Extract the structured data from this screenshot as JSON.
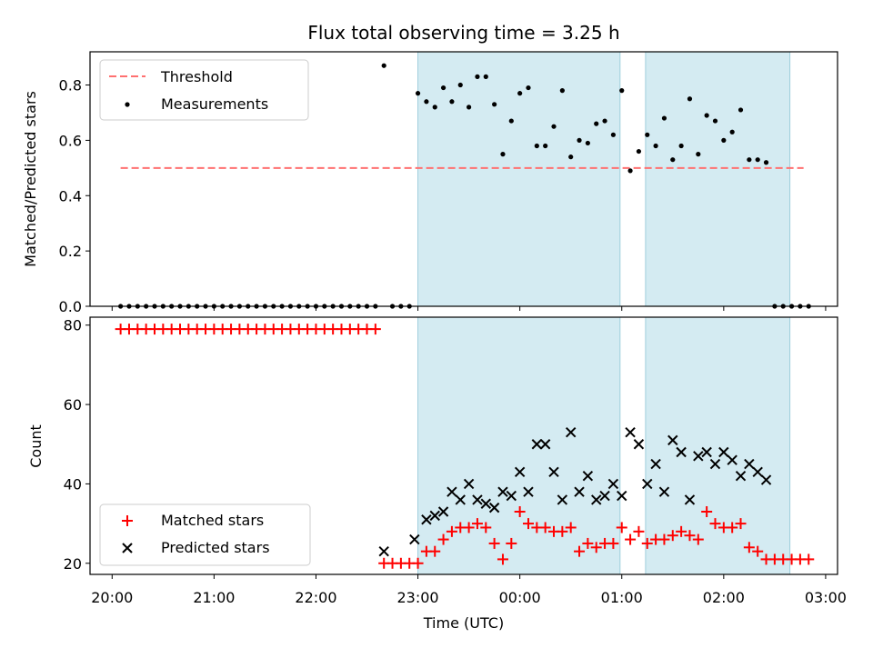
{
  "figure": {
    "title": "Flux total observing time = 3.25 h",
    "xlabel": "Time (UTC)",
    "xticks": [
      "20:00",
      "21:00",
      "22:00",
      "23:00",
      "00:00",
      "01:00",
      "02:00",
      "03:00"
    ]
  },
  "chart_data": [
    {
      "type": "scatter",
      "ylabel": "Matched/Predicted stars",
      "xlim": [
        "19:47",
        "03:07"
      ],
      "ylim": [
        0,
        0.92
      ],
      "yticks": [
        "0.0",
        "0.2",
        "0.4",
        "0.6",
        "0.8"
      ],
      "grid": false,
      "legend_position": "upper-left",
      "shaded_intervals": [
        [
          "23:00",
          "00:59"
        ],
        [
          "01:14",
          "02:39"
        ]
      ],
      "threshold": {
        "name": "Threshold",
        "y": 0.5,
        "x_range": [
          "20:05",
          "02:47"
        ],
        "color": "#ff7070"
      },
      "series": [
        {
          "name": "Measurements",
          "marker": "dot",
          "color": "#000000",
          "points": [
            [
              "20:05",
              0
            ],
            [
              "20:10",
              0
            ],
            [
              "20:15",
              0
            ],
            [
              "20:20",
              0
            ],
            [
              "20:25",
              0
            ],
            [
              "20:30",
              0
            ],
            [
              "20:35",
              0
            ],
            [
              "20:40",
              0
            ],
            [
              "20:45",
              0
            ],
            [
              "20:50",
              0
            ],
            [
              "20:55",
              0
            ],
            [
              "21:00",
              0
            ],
            [
              "21:05",
              0
            ],
            [
              "21:10",
              0
            ],
            [
              "21:15",
              0
            ],
            [
              "21:20",
              0
            ],
            [
              "21:25",
              0
            ],
            [
              "21:30",
              0
            ],
            [
              "21:35",
              0
            ],
            [
              "21:40",
              0
            ],
            [
              "21:45",
              0
            ],
            [
              "21:50",
              0
            ],
            [
              "21:55",
              0
            ],
            [
              "22:00",
              0
            ],
            [
              "22:05",
              0
            ],
            [
              "22:10",
              0
            ],
            [
              "22:15",
              0
            ],
            [
              "22:20",
              0
            ],
            [
              "22:25",
              0
            ],
            [
              "22:30",
              0
            ],
            [
              "22:35",
              0
            ],
            [
              "22:40",
              0.87
            ],
            [
              "22:45",
              0
            ],
            [
              "22:50",
              0
            ],
            [
              "22:55",
              0
            ],
            [
              "23:00",
              0.77
            ],
            [
              "23:05",
              0.74
            ],
            [
              "23:10",
              0.72
            ],
            [
              "23:15",
              0.79
            ],
            [
              "23:20",
              0.74
            ],
            [
              "23:25",
              0.8
            ],
            [
              "23:30",
              0.72
            ],
            [
              "23:35",
              0.83
            ],
            [
              "23:40",
              0.83
            ],
            [
              "23:45",
              0.73
            ],
            [
              "23:50",
              0.55
            ],
            [
              "23:55",
              0.67
            ],
            [
              "00:00",
              0.77
            ],
            [
              "00:05",
              0.79
            ],
            [
              "00:10",
              0.58
            ],
            [
              "00:15",
              0.58
            ],
            [
              "00:20",
              0.65
            ],
            [
              "00:25",
              0.78
            ],
            [
              "00:30",
              0.54
            ],
            [
              "00:35",
              0.6
            ],
            [
              "00:40",
              0.59
            ],
            [
              "00:45",
              0.66
            ],
            [
              "00:50",
              0.67
            ],
            [
              "00:55",
              0.62
            ],
            [
              "01:00",
              0.78
            ],
            [
              "01:05",
              0.49
            ],
            [
              "01:10",
              0.56
            ],
            [
              "01:15",
              0.62
            ],
            [
              "01:20",
              0.58
            ],
            [
              "01:25",
              0.68
            ],
            [
              "01:30",
              0.53
            ],
            [
              "01:35",
              0.58
            ],
            [
              "01:40",
              0.75
            ],
            [
              "01:45",
              0.55
            ],
            [
              "01:50",
              0.69
            ],
            [
              "01:55",
              0.67
            ],
            [
              "02:00",
              0.6
            ],
            [
              "02:05",
              0.63
            ],
            [
              "02:10",
              0.71
            ],
            [
              "02:15",
              0.53
            ],
            [
              "02:20",
              0.53
            ],
            [
              "02:25",
              0.52
            ],
            [
              "02:30",
              0
            ],
            [
              "02:35",
              0
            ],
            [
              "02:40",
              0
            ],
            [
              "02:45",
              0
            ],
            [
              "02:50",
              0
            ]
          ]
        }
      ]
    },
    {
      "type": "scatter",
      "ylabel": "Count",
      "xlim": [
        "19:47",
        "03:07"
      ],
      "ylim": [
        17.2,
        82
      ],
      "yticks": [
        "20",
        "40",
        "60",
        "80"
      ],
      "grid": false,
      "legend_position": "lower-left",
      "shaded_intervals": [
        [
          "23:00",
          "00:59"
        ],
        [
          "01:14",
          "02:39"
        ]
      ],
      "series": [
        {
          "name": "Matched stars",
          "marker": "plus",
          "color": "#ff0000",
          "points": [
            [
              "20:05",
              79
            ],
            [
              "20:10",
              79
            ],
            [
              "20:15",
              79
            ],
            [
              "20:20",
              79
            ],
            [
              "20:25",
              79
            ],
            [
              "20:30",
              79
            ],
            [
              "20:35",
              79
            ],
            [
              "20:40",
              79
            ],
            [
              "20:45",
              79
            ],
            [
              "20:50",
              79
            ],
            [
              "20:55",
              79
            ],
            [
              "21:00",
              79
            ],
            [
              "21:05",
              79
            ],
            [
              "21:10",
              79
            ],
            [
              "21:15",
              79
            ],
            [
              "21:20",
              79
            ],
            [
              "21:25",
              79
            ],
            [
              "21:30",
              79
            ],
            [
              "21:35",
              79
            ],
            [
              "21:40",
              79
            ],
            [
              "21:45",
              79
            ],
            [
              "21:50",
              79
            ],
            [
              "21:55",
              79
            ],
            [
              "22:00",
              79
            ],
            [
              "22:05",
              79
            ],
            [
              "22:10",
              79
            ],
            [
              "22:15",
              79
            ],
            [
              "22:20",
              79
            ],
            [
              "22:25",
              79
            ],
            [
              "22:30",
              79
            ],
            [
              "22:35",
              79
            ],
            [
              "22:40",
              20
            ],
            [
              "22:45",
              20
            ],
            [
              "22:50",
              20
            ],
            [
              "22:55",
              20
            ],
            [
              "23:00",
              20
            ],
            [
              "23:05",
              23
            ],
            [
              "23:10",
              23
            ],
            [
              "23:15",
              26
            ],
            [
              "23:20",
              28
            ],
            [
              "23:25",
              29
            ],
            [
              "23:30",
              29
            ],
            [
              "23:35",
              30
            ],
            [
              "23:40",
              29
            ],
            [
              "23:45",
              25
            ],
            [
              "23:50",
              21
            ],
            [
              "23:55",
              25
            ],
            [
              "00:00",
              33
            ],
            [
              "00:05",
              30
            ],
            [
              "00:10",
              29
            ],
            [
              "00:15",
              29
            ],
            [
              "00:20",
              28
            ],
            [
              "00:25",
              28
            ],
            [
              "00:30",
              29
            ],
            [
              "00:35",
              23
            ],
            [
              "00:40",
              25
            ],
            [
              "00:45",
              24
            ],
            [
              "00:50",
              25
            ],
            [
              "00:55",
              25
            ],
            [
              "01:00",
              29
            ],
            [
              "01:05",
              26
            ],
            [
              "01:10",
              28
            ],
            [
              "01:15",
              25
            ],
            [
              "01:20",
              26
            ],
            [
              "01:25",
              26
            ],
            [
              "01:30",
              27
            ],
            [
              "01:35",
              28
            ],
            [
              "01:40",
              27
            ],
            [
              "01:45",
              26
            ],
            [
              "01:50",
              33
            ],
            [
              "01:55",
              30
            ],
            [
              "02:00",
              29
            ],
            [
              "02:05",
              29
            ],
            [
              "02:10",
              30
            ],
            [
              "02:15",
              24
            ],
            [
              "02:20",
              23
            ],
            [
              "02:25",
              21
            ],
            [
              "02:30",
              21
            ],
            [
              "02:35",
              21
            ],
            [
              "02:40",
              21
            ],
            [
              "02:45",
              21
            ],
            [
              "02:50",
              21
            ]
          ]
        },
        {
          "name": "Predicted stars",
          "marker": "x",
          "color": "#000000",
          "points": [
            [
              "22:40",
              23
            ],
            [
              "22:58",
              26
            ],
            [
              "23:05",
              31
            ],
            [
              "23:10",
              32
            ],
            [
              "23:15",
              33
            ],
            [
              "23:20",
              38
            ],
            [
              "23:25",
              36
            ],
            [
              "23:30",
              40
            ],
            [
              "23:35",
              36
            ],
            [
              "23:40",
              35
            ],
            [
              "23:45",
              34
            ],
            [
              "23:50",
              38
            ],
            [
              "23:55",
              37
            ],
            [
              "00:00",
              43
            ],
            [
              "00:05",
              38
            ],
            [
              "00:10",
              50
            ],
            [
              "00:15",
              50
            ],
            [
              "00:20",
              43
            ],
            [
              "00:25",
              36
            ],
            [
              "00:30",
              53
            ],
            [
              "00:35",
              38
            ],
            [
              "00:40",
              42
            ],
            [
              "00:45",
              36
            ],
            [
              "00:50",
              37
            ],
            [
              "00:55",
              40
            ],
            [
              "01:00",
              37
            ],
            [
              "01:05",
              53
            ],
            [
              "01:10",
              50
            ],
            [
              "01:15",
              40
            ],
            [
              "01:20",
              45
            ],
            [
              "01:25",
              38
            ],
            [
              "01:30",
              51
            ],
            [
              "01:35",
              48
            ],
            [
              "01:40",
              36
            ],
            [
              "01:45",
              47
            ],
            [
              "01:50",
              48
            ],
            [
              "01:55",
              45
            ],
            [
              "02:00",
              48
            ],
            [
              "02:05",
              46
            ],
            [
              "02:10",
              42
            ],
            [
              "02:15",
              45
            ],
            [
              "02:20",
              43
            ],
            [
              "02:25",
              41
            ]
          ]
        }
      ]
    }
  ]
}
